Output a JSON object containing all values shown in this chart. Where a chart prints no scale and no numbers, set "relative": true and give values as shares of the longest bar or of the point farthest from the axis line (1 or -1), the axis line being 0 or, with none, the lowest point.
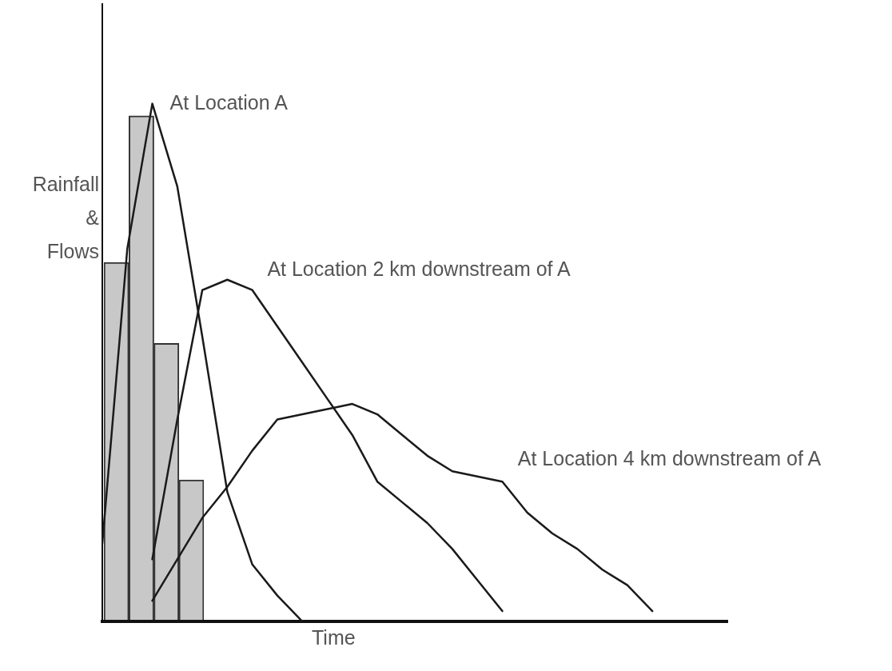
{
  "chart_data": [
    {
      "type": "bar",
      "relative": true,
      "grid": false,
      "legend": false,
      "categories": [
        null,
        null,
        null,
        null
      ],
      "color": "#c8c8c8",
      "values": [
        0.71,
        1.0,
        0.55,
        0.28
      ]
    },
    {
      "type": "line",
      "relative": true,
      "xlabel": "Time",
      "ylabel": "Rainfall & Flows",
      "grid": false,
      "legend": false,
      "categories": [
        null,
        null,
        null,
        null,
        null,
        null,
        null,
        null,
        null,
        null,
        null,
        null,
        null,
        null,
        null,
        null,
        null,
        null,
        null,
        null,
        null,
        null,
        null,
        null,
        null,
        null
      ],
      "series": [
        {
          "name": "At Location A",
          "color": "#1a1a1a",
          "values": [
            0.15,
            0.72,
            1.0,
            0.84,
            0.55,
            0.25,
            0.11,
            0.05,
            0,
            null,
            null,
            null,
            null,
            null,
            null,
            null,
            null,
            null,
            null,
            null,
            null,
            null,
            null,
            null,
            null,
            null
          ]
        },
        {
          "name": "At Location 2 km downstream of A",
          "color": "#1a1a1a",
          "values": [
            null,
            null,
            0.12,
            0.39,
            0.64,
            0.66,
            0.64,
            0.57,
            0.5,
            0.43,
            0.36,
            0.27,
            0.23,
            0.19,
            0.14,
            0.08,
            0.02,
            null,
            null,
            null,
            null,
            null,
            null,
            null,
            null,
            null
          ]
        },
        {
          "name": "At Location 4 km downstream of A",
          "color": "#1a1a1a",
          "values": [
            null,
            null,
            0.04,
            0.12,
            0.2,
            0.26,
            0.33,
            0.39,
            0.4,
            0.41,
            0.42,
            0.4,
            0.36,
            0.32,
            0.29,
            0.28,
            0.27,
            0.21,
            0.17,
            0.14,
            0.1,
            0.07,
            0.02,
            null,
            null,
            null
          ]
        }
      ]
    }
  ]
}
